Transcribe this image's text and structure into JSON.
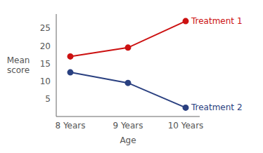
{
  "chart_data": {
    "type": "line",
    "categories": [
      "8 Years",
      "9 Years",
      "10 Years"
    ],
    "series": [
      {
        "name": "Treatment 1",
        "color": "#cc1111",
        "marker": "circle",
        "values": [
          17,
          19.5,
          27
        ]
      },
      {
        "name": "Treatment 2",
        "color": "#2a4080",
        "marker": "circle",
        "values": [
          12.5,
          9.5,
          2.5
        ]
      }
    ],
    "xlabel": "Age",
    "ylabel": "Mean score",
    "ylim": [
      0,
      29
    ],
    "yticks": [
      5,
      10,
      15,
      20,
      25
    ],
    "grid": false
  }
}
